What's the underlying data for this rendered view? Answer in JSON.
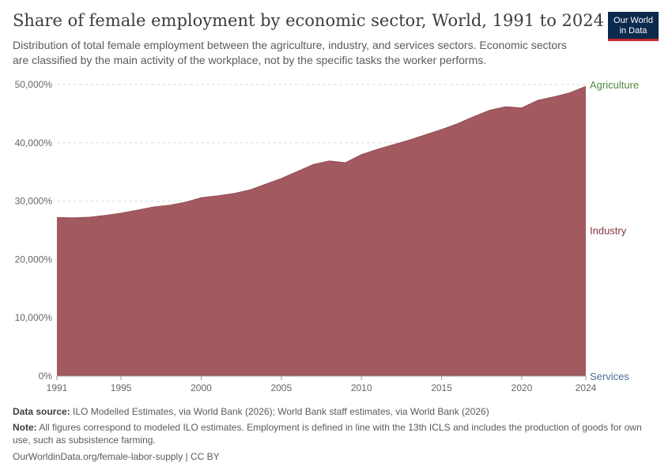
{
  "header": {
    "title": "Share of female employment by economic sector, World, 1991 to 2024",
    "subtitle": "Distribution of total female employment between the agriculture, industry, and services sectors. Economic sectors are classified by the main activity of the workplace, not by the specific tasks the worker performs.",
    "logo_line1": "Our World",
    "logo_line2": "in Data"
  },
  "footer": {
    "source_label": "Data source:",
    "source_text": "ILO Modelled Estimates, via World Bank (2026); World Bank staff estimates, via World Bank (2026)",
    "note_label": "Note:",
    "note_text": "All figures correspond to modeled ILO estimates. Employment is defined in line with the 13th ICLS and includes the production of goods for own use, such as subsistence farming.",
    "url_text": "OurWorldinData.org/female-labor-supply | CC BY"
  },
  "chart_data": {
    "type": "area",
    "x": [
      1991,
      1992,
      1993,
      1994,
      1995,
      1996,
      1997,
      1998,
      1999,
      2000,
      2001,
      2002,
      2003,
      2004,
      2005,
      2006,
      2007,
      2008,
      2009,
      2010,
      2011,
      2012,
      2013,
      2014,
      2015,
      2016,
      2017,
      2018,
      2019,
      2020,
      2021,
      2022,
      2023,
      2024
    ],
    "series": [
      {
        "name": "Industry",
        "color": "#a2595f",
        "values": [
          27200,
          27150,
          27250,
          27550,
          27950,
          28450,
          29000,
          29300,
          29800,
          30600,
          30900,
          31300,
          31900,
          32900,
          33900,
          35100,
          36300,
          36900,
          36600,
          38000,
          38900,
          39700,
          40500,
          41400,
          42300,
          43300,
          44500,
          45600,
          46200,
          46000,
          47300,
          47900,
          48600,
          49700
        ]
      }
    ],
    "legend_labels": [
      {
        "name": "Agriculture",
        "color": "#4e8a3e",
        "y": 50000
      },
      {
        "name": "Industry",
        "color": "#8a3340",
        "y": 25000
      },
      {
        "name": "Services",
        "color": "#4c6a9c",
        "y": 0
      }
    ],
    "ylim": [
      0,
      50000
    ],
    "y_ticks": [
      0,
      10000,
      20000,
      30000,
      40000,
      50000
    ],
    "y_tick_labels": [
      "0%",
      "10,000%",
      "20,000%",
      "30,000%",
      "40,000%",
      "50,000%"
    ],
    "x_ticks": [
      1991,
      1995,
      2000,
      2005,
      2010,
      2015,
      2020,
      2024
    ],
    "x_tick_labels": [
      "1991",
      "1995",
      "2000",
      "2005",
      "2010",
      "2015",
      "2020",
      "2024"
    ],
    "grid": true,
    "legend_position": "right"
  }
}
